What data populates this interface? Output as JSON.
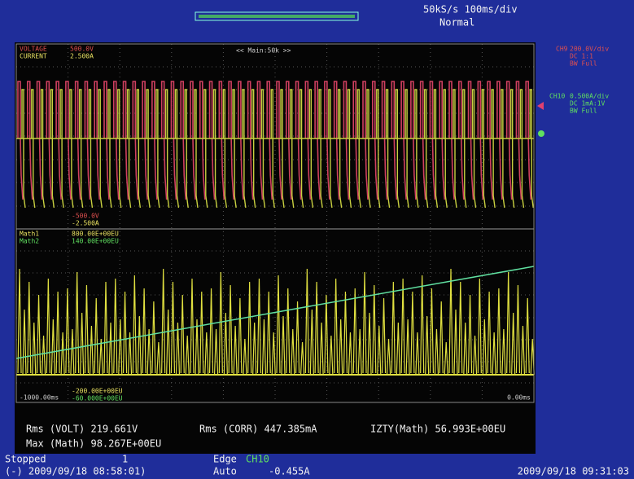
{
  "header": {
    "sample_rate": "50kS/s 100ms/div",
    "trigger_mode": "Normal"
  },
  "upper_panel": {
    "ch1_name": "VOLTAGE",
    "ch1_scale": "500.0V",
    "ch2_name": "CURRENT",
    "ch2_scale": "2.500A",
    "zoom": "<< Main:50k >>",
    "ch1_min": "-500.0V",
    "ch2_min": "-2.500A"
  },
  "lower_panel": {
    "math1_name": "Math1",
    "math1_scale": "800.00E+00EU",
    "math2_name": "Math2",
    "math2_scale": "140.00E+00EU",
    "math1_min": "-200.00E+00EU",
    "math2_min": "-60.000E+00EU",
    "time_start": "-1000.00ms",
    "time_end": "0.00ms"
  },
  "channels": [
    {
      "name": "CH9",
      "lines": [
        "200.0V/div",
        "DC 1:1",
        "BW Full"
      ]
    },
    {
      "name": "CH10",
      "lines": [
        "0.500A/div",
        "DC 1mA:1V",
        "BW Full"
      ]
    }
  ],
  "measurements": {
    "rms_volt": "Rms (VOLT) 219.661V",
    "max_math": "Max (Math) 98.267E+00EU",
    "rms_corr": "Rms (CORR) 447.385mA",
    "izty": "IZTY(Math) 56.993E+00EU"
  },
  "status": {
    "state": "Stopped",
    "count": "1",
    "start_time": "(-) 2009/09/18 08:58:01)",
    "trigger_type": "Edge",
    "trigger_source": "CH10",
    "trigger_mode": "Auto",
    "trigger_level": "-0.455A",
    "current_time": "2009/09/18 09:31:03"
  }
}
